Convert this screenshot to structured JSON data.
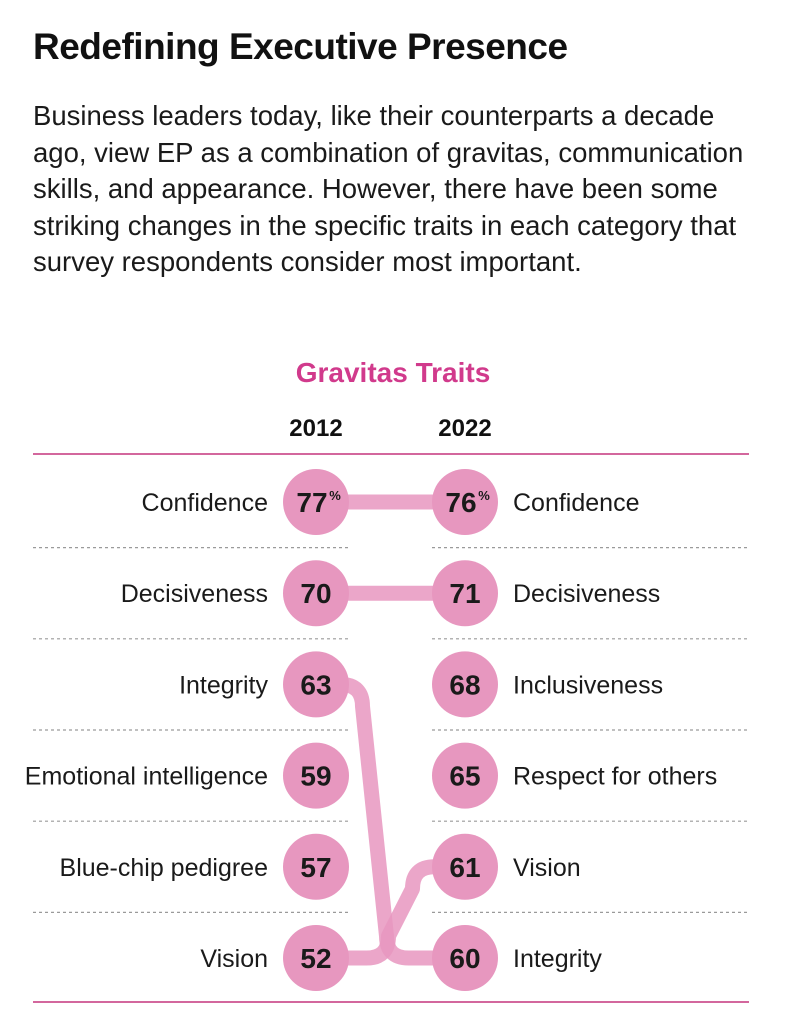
{
  "title": "Redefining Executive Presence",
  "subtitle": "Business leaders today, like their counterparts a decade ago, view EP as a combination of gravitas, communication skills, and appearance. However, there have been some striking changes in the specific traits in each category that survey respondents consider most important.",
  "colors": {
    "accent": "#d13a8c",
    "bubble": "#e797bf",
    "connector": "#e797bf",
    "rule": "#d3679d",
    "text": "#1a1a1a"
  },
  "chart_data": {
    "type": "slope",
    "title": "Gravitas Traits",
    "unit": "%",
    "columns": [
      "2012",
      "2022"
    ],
    "left": [
      {
        "trait": "Confidence",
        "value": 77
      },
      {
        "trait": "Decisiveness",
        "value": 70
      },
      {
        "trait": "Integrity",
        "value": 63
      },
      {
        "trait": "Emotional intelligence",
        "value": 59
      },
      {
        "trait": "Blue-chip pedigree",
        "value": 57
      },
      {
        "trait": "Vision",
        "value": 52
      }
    ],
    "right": [
      {
        "trait": "Confidence",
        "value": 76
      },
      {
        "trait": "Decisiveness",
        "value": 71
      },
      {
        "trait": "Inclusiveness",
        "value": 68
      },
      {
        "trait": "Respect for others",
        "value": 65
      },
      {
        "trait": "Vision",
        "value": 61
      },
      {
        "trait": "Integrity",
        "value": 60
      }
    ],
    "links": [
      {
        "trait": "Confidence",
        "from_rank": 1,
        "to_rank": 1
      },
      {
        "trait": "Decisiveness",
        "from_rank": 2,
        "to_rank": 2
      },
      {
        "trait": "Integrity",
        "from_rank": 3,
        "to_rank": 6
      },
      {
        "trait": "Vision",
        "from_rank": 6,
        "to_rank": 5
      }
    ]
  }
}
